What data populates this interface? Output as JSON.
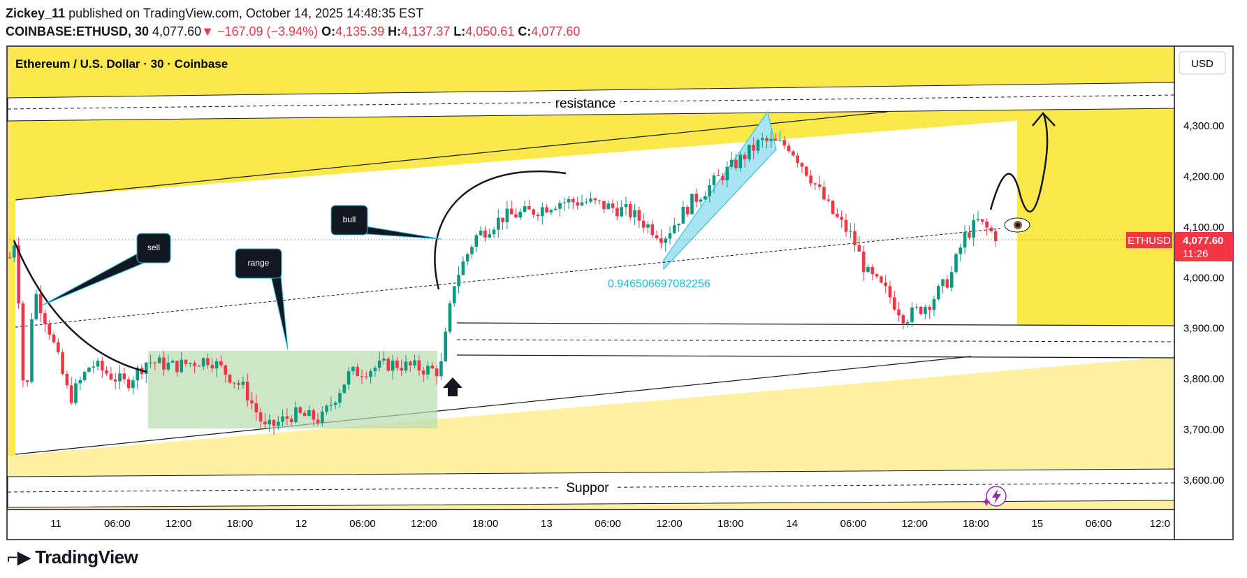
{
  "header": {
    "author": "Zickey_11",
    "publish_line": "published on TradingView.com, October 14, 2025 14:48:35 EST",
    "symbol": "COINBASE:ETHUSD, 30",
    "last": "4,077.60",
    "change": "▼ −167.09 (−3.94%)",
    "o_label": "O:",
    "o_value": "4,135.39",
    "h_label": "H:",
    "h_value": "4,137.37",
    "l_label": "L:",
    "l_value": "4,050.61",
    "c_label": "C:",
    "c_value": "4,077.60"
  },
  "chart_data": {
    "type": "candlestick",
    "title": "Ethereum / U.S. Dollar · 30 · Coinbase",
    "currency": "USD",
    "y_ticks": [
      "4,300.00",
      "4,200.00",
      "4,100.00",
      "4,000.00",
      "3,900.00",
      "3,800.00",
      "3,700.00",
      "3,600.00"
    ],
    "y_tick_values": [
      4300,
      4200,
      4100,
      4000,
      3900,
      3800,
      3700,
      3600
    ],
    "ylim": [
      3555,
      4350
    ],
    "x_ticks": [
      "11",
      "06:00",
      "12:00",
      "18:00",
      "12",
      "06:00",
      "12:00",
      "18:00",
      "13",
      "06:00",
      "12:00",
      "18:00",
      "14",
      "06:00",
      "12:00",
      "18:00",
      "15",
      "06:00",
      "12:0"
    ],
    "price_label": {
      "symbol": "ETHUSD",
      "price": "4,077.60",
      "countdown": "11:26",
      "value": 4077.6
    },
    "annotations": {
      "resistance": "resistance",
      "support": "Suppor",
      "sell": "sell",
      "range": "range",
      "bull": "bull",
      "fib_value": "0.946506697082256"
    },
    "colors": {
      "up": "#089981",
      "down": "#f23645",
      "zone": "#fbe84a",
      "zone_light": "#fdf0a0",
      "range_box": "#b8dcb0",
      "channel": "#a8e4f2",
      "fib_text": "#22b8d8",
      "price_tag": "#f23645"
    },
    "key_prices": {
      "high": 4300,
      "low": 3650,
      "range_low": 3700,
      "range_high": 3860
    }
  },
  "footer": {
    "brand": "TradingView"
  }
}
